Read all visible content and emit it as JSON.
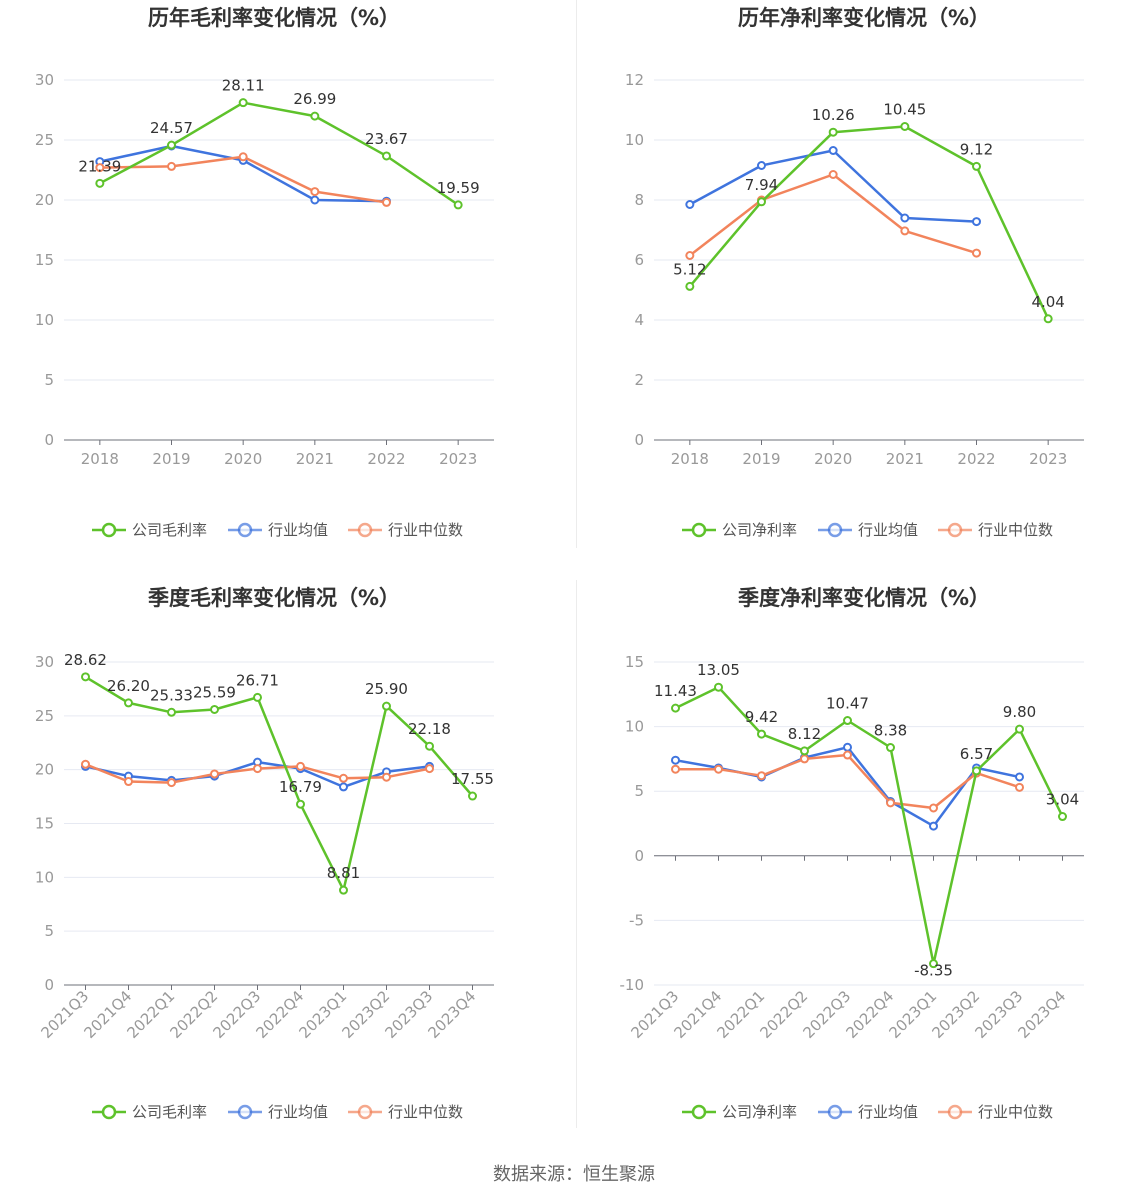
{
  "source_label": "数据来源：恒生聚源",
  "colors": {
    "company": "#5ec22b",
    "avg": "#3f74de",
    "median": "#f2845c"
  },
  "chart_data": [
    {
      "type": "line",
      "title": "历年毛利率变化情况（%）",
      "categories": [
        "2018",
        "2019",
        "2020",
        "2021",
        "2022",
        "2023"
      ],
      "ylim": [
        0,
        30
      ],
      "yticks": [
        0,
        5,
        10,
        15,
        20,
        25,
        30
      ],
      "series": [
        {
          "name": "公司毛利率",
          "key": "company",
          "values": [
            21.39,
            24.57,
            28.11,
            26.99,
            23.67,
            19.59
          ],
          "labels": [
            "21.39",
            "24.57",
            "28.11",
            "26.99",
            "23.67",
            "19.59"
          ]
        },
        {
          "name": "行业均值",
          "key": "avg",
          "values": [
            23.2,
            24.5,
            23.3,
            20.0,
            19.9,
            null
          ]
        },
        {
          "name": "行业中位数",
          "key": "median",
          "values": [
            22.7,
            22.8,
            23.6,
            20.7,
            19.8,
            null
          ]
        }
      ]
    },
    {
      "type": "line",
      "title": "历年净利率变化情况（%）",
      "categories": [
        "2018",
        "2019",
        "2020",
        "2021",
        "2022",
        "2023"
      ],
      "ylim": [
        0,
        12
      ],
      "yticks": [
        0,
        2,
        4,
        6,
        8,
        10,
        12
      ],
      "series": [
        {
          "name": "公司净利率",
          "key": "company",
          "values": [
            5.12,
            7.94,
            10.26,
            10.45,
            9.12,
            4.04
          ],
          "labels": [
            "5.12",
            "7.94",
            "10.26",
            "10.45",
            "9.12",
            "4.04"
          ]
        },
        {
          "name": "行业均值",
          "key": "avg",
          "values": [
            7.85,
            9.15,
            9.65,
            7.4,
            7.28,
            null
          ]
        },
        {
          "name": "行业中位数",
          "key": "median",
          "values": [
            6.15,
            8.0,
            8.85,
            6.97,
            6.23,
            null
          ]
        }
      ]
    },
    {
      "type": "line",
      "title": "季度毛利率变化情况（%）",
      "categories": [
        "2021Q3",
        "2021Q4",
        "2022Q1",
        "2022Q2",
        "2022Q3",
        "2022Q4",
        "2023Q1",
        "2023Q2",
        "2023Q3",
        "2023Q4"
      ],
      "ylim": [
        0,
        30
      ],
      "yticks": [
        0,
        5,
        10,
        15,
        20,
        25,
        30
      ],
      "series": [
        {
          "name": "公司毛利率",
          "key": "company",
          "values": [
            28.62,
            26.2,
            25.33,
            25.59,
            26.71,
            16.79,
            8.81,
            25.9,
            22.18,
            17.55
          ],
          "labels": [
            "28.62",
            "26.20",
            "25.33",
            "25.59",
            "26.71",
            "16.79",
            "8.81",
            "25.90",
            "22.18",
            "17.55"
          ]
        },
        {
          "name": "行业均值",
          "key": "avg",
          "values": [
            20.3,
            19.4,
            19.0,
            19.4,
            20.7,
            20.1,
            18.4,
            19.8,
            20.3,
            null
          ]
        },
        {
          "name": "行业中位数",
          "key": "median",
          "values": [
            20.5,
            18.9,
            18.8,
            19.6,
            20.1,
            20.3,
            19.2,
            19.3,
            20.1,
            null
          ]
        }
      ]
    },
    {
      "type": "line",
      "title": "季度净利率变化情况（%）",
      "categories": [
        "2021Q3",
        "2021Q4",
        "2022Q1",
        "2022Q2",
        "2022Q3",
        "2022Q4",
        "2023Q1",
        "2023Q2",
        "2023Q3",
        "2023Q4"
      ],
      "ylim": [
        -10,
        15
      ],
      "yticks": [
        -10,
        -5,
        0,
        5,
        10,
        15
      ],
      "series": [
        {
          "name": "公司净利率",
          "key": "company",
          "values": [
            11.43,
            13.05,
            9.42,
            8.12,
            10.47,
            8.38,
            -8.35,
            6.57,
            9.8,
            3.04
          ],
          "labels": [
            "11.43",
            "13.05",
            "9.42",
            "8.12",
            "10.47",
            "8.38",
            "-8.35",
            "6.57",
            "9.80",
            "3.04"
          ]
        },
        {
          "name": "行业均值",
          "key": "avg",
          "values": [
            7.4,
            6.8,
            6.1,
            7.6,
            8.4,
            4.2,
            2.3,
            6.8,
            6.1,
            null
          ]
        },
        {
          "name": "行业中位数",
          "key": "median",
          "values": [
            6.7,
            6.7,
            6.2,
            7.5,
            7.8,
            4.1,
            3.7,
            6.4,
            5.3,
            null
          ]
        }
      ]
    }
  ]
}
